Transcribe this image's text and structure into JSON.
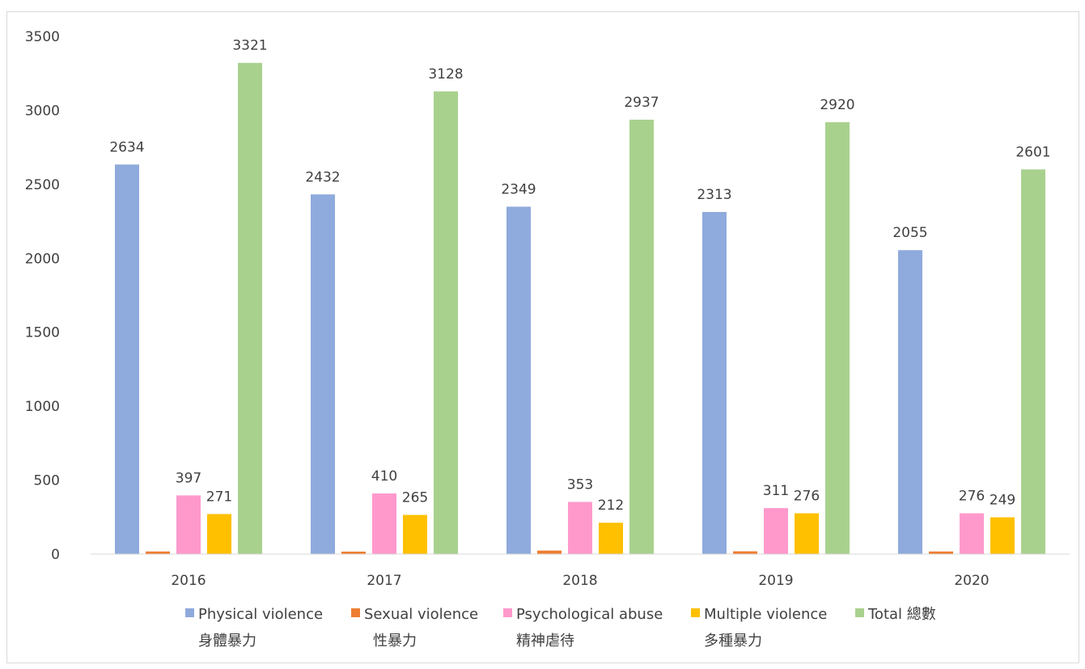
{
  "chart_data": {
    "type": "bar",
    "categories": [
      "2016",
      "2017",
      "2018",
      "2019",
      "2020"
    ],
    "series": [
      {
        "name_line1": "Physical violence",
        "name_line2": "身體暴力",
        "color": "#8faadc",
        "values": [
          2634,
          2432,
          2349,
          2313,
          2055
        ],
        "labels": [
          "2634",
          "2432",
          "2349",
          "2313",
          "2055"
        ]
      },
      {
        "name_line1": "Sexual violence",
        "name_line2": "性暴力",
        "color": "#ed7d31",
        "values": [
          18,
          17,
          24,
          19,
          18
        ],
        "labels": [
          "",
          "",
          "",
          "",
          ""
        ]
      },
      {
        "name_line1": "Psychological abuse",
        "name_line2": "精神虐待",
        "color": "#ff99cc",
        "values": [
          397,
          410,
          353,
          311,
          276
        ],
        "labels": [
          "397",
          "410",
          "353",
          "311",
          "276"
        ]
      },
      {
        "name_line1": "Multiple violence",
        "name_line2": "多種暴力",
        "color": "#ffc000",
        "values": [
          271,
          265,
          212,
          276,
          249
        ],
        "labels": [
          "271",
          "265",
          "212",
          "276",
          "249"
        ]
      },
      {
        "name_line1": "Total 總數",
        "name_line2": "",
        "color": "#a9d18e",
        "values": [
          3321,
          3128,
          2937,
          2920,
          2601
        ],
        "labels": [
          "3321",
          "3128",
          "2937",
          "2920",
          "2601"
        ]
      }
    ],
    "yticks": [
      "0",
      "500",
      "1000",
      "1500",
      "2000",
      "2500",
      "3000",
      "3500"
    ],
    "ylim": [
      0,
      3500
    ],
    "grid": false,
    "legend": "bottom",
    "axis_color": "#d9d9d9"
  }
}
